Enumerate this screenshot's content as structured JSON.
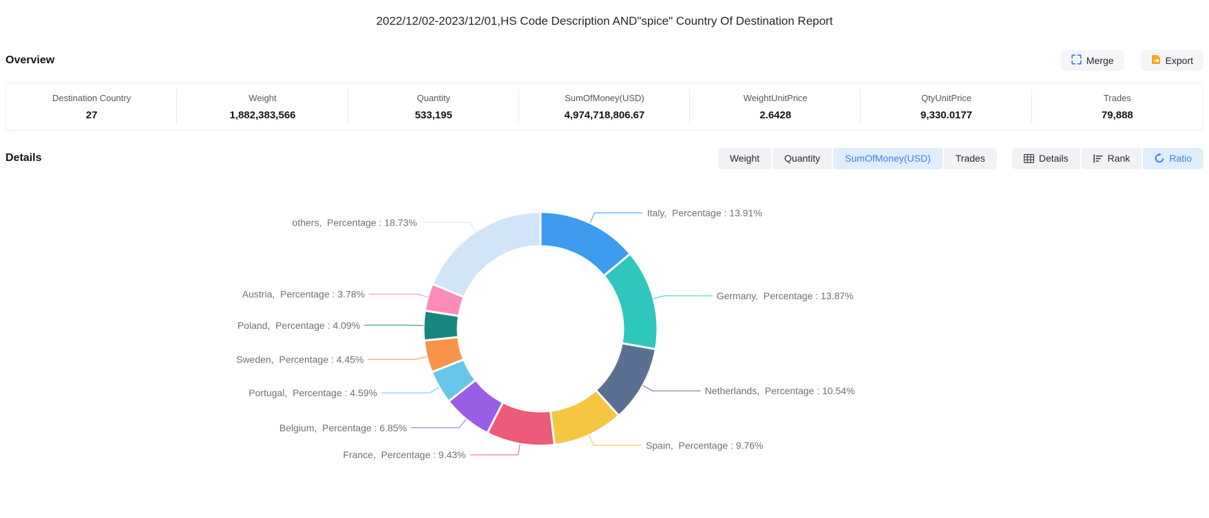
{
  "title": "2022/12/02-2023/12/01,HS Code Description AND\"spice\" Country Of Destination Report",
  "overview": {
    "heading": "Overview",
    "buttons": [
      {
        "label": "Merge",
        "icon": "merge-icon",
        "icon_color": "#3875f6"
      },
      {
        "label": "Export",
        "icon": "export-icon",
        "icon_color": "#f7a824"
      }
    ],
    "stats": [
      {
        "label": "Destination Country",
        "value": "27"
      },
      {
        "label": "Weight",
        "value": "1,882,383,566"
      },
      {
        "label": "Quantity",
        "value": "533,195"
      },
      {
        "label": "SumOfMoney(USD)",
        "value": "4,974,718,806.67"
      },
      {
        "label": "WeightUnitPrice",
        "value": "2.6428"
      },
      {
        "label": "QtyUnitPrice",
        "value": "9,330.0177"
      },
      {
        "label": "Trades",
        "value": "79,888"
      }
    ]
  },
  "details": {
    "heading": "Details",
    "metric_tabs": [
      {
        "label": "Weight",
        "active": false
      },
      {
        "label": "Quantity",
        "active": false
      },
      {
        "label": "SumOfMoney(USD)",
        "active": true
      },
      {
        "label": "Trades",
        "active": false
      }
    ],
    "view_tabs": [
      {
        "label": "Details",
        "icon": "details-table-icon",
        "active": false
      },
      {
        "label": "Rank",
        "icon": "rank-icon",
        "active": false
      },
      {
        "label": "Ratio",
        "icon": "ratio-icon",
        "active": true
      }
    ],
    "active_color": "#3b82f6"
  },
  "chart_data": {
    "type": "pie",
    "subtype": "donut",
    "title": "",
    "label_prefix": "Percentage",
    "unit": "%",
    "legend_position": "none",
    "start_angle_deg": 0,
    "clockwise": true,
    "series": [
      {
        "name": "Italy",
        "value": 13.91,
        "color": "#3d9bf0"
      },
      {
        "name": "Germany",
        "value": 13.87,
        "color": "#2fc7bd"
      },
      {
        "name": "Netherlands",
        "value": 10.54,
        "color": "#5a7092"
      },
      {
        "name": "Spain",
        "value": 9.76,
        "color": "#f6c643"
      },
      {
        "name": "France",
        "value": 9.43,
        "color": "#ee5a79"
      },
      {
        "name": "Belgium",
        "value": 6.85,
        "color": "#9b5ce6"
      },
      {
        "name": "Portugal",
        "value": 4.59,
        "color": "#66c6ea"
      },
      {
        "name": "Sweden",
        "value": 4.45,
        "color": "#f79449"
      },
      {
        "name": "Poland",
        "value": 4.09,
        "color": "#17877d"
      },
      {
        "name": "Austria",
        "value": 3.78,
        "color": "#fb8bb9"
      },
      {
        "name": "others",
        "value": 18.73,
        "color": "#d2e5f8"
      }
    ]
  }
}
